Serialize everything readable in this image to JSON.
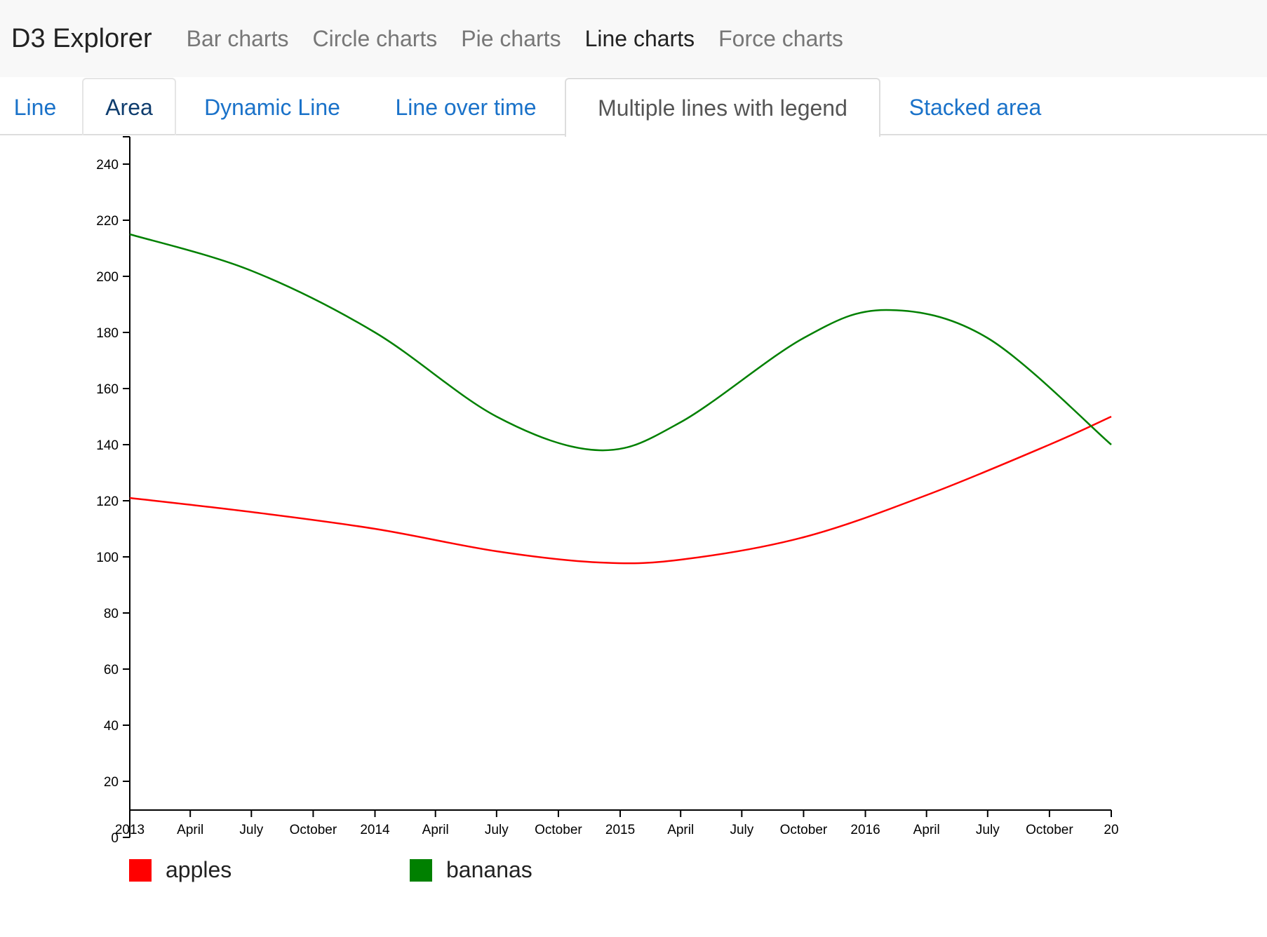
{
  "navbar": {
    "brand": "D3 Explorer",
    "items": [
      {
        "label": "Bar charts",
        "active": false
      },
      {
        "label": "Circle charts",
        "active": false
      },
      {
        "label": "Pie charts",
        "active": false
      },
      {
        "label": "Line charts",
        "active": true
      },
      {
        "label": "Force charts",
        "active": false
      }
    ]
  },
  "tabs": [
    {
      "label": "Line",
      "active": false
    },
    {
      "label": "Area",
      "active": false
    },
    {
      "label": "Dynamic Line",
      "active": false
    },
    {
      "label": "Line over time",
      "active": false
    },
    {
      "label": "Multiple lines with legend",
      "active": true
    },
    {
      "label": "Stacked area",
      "active": false
    }
  ],
  "colors": {
    "apples": "#ff0000",
    "bananas": "#008000",
    "link": "#1a72c9"
  },
  "chart_data": {
    "type": "line",
    "title": "",
    "xlabel": "",
    "ylabel": "",
    "ylim": [
      0,
      250
    ],
    "y_ticks": [
      20,
      40,
      60,
      80,
      100,
      120,
      140,
      160,
      180,
      200,
      220,
      240
    ],
    "y_origin_label": "0",
    "x_ticks": [
      {
        "date": "2013-01-01",
        "label": "2013"
      },
      {
        "date": "2013-04-01",
        "label": "April"
      },
      {
        "date": "2013-07-01",
        "label": "July"
      },
      {
        "date": "2013-10-01",
        "label": "October"
      },
      {
        "date": "2014-01-01",
        "label": "2014"
      },
      {
        "date": "2014-04-01",
        "label": "April"
      },
      {
        "date": "2014-07-01",
        "label": "July"
      },
      {
        "date": "2014-10-01",
        "label": "October"
      },
      {
        "date": "2015-01-01",
        "label": "2015"
      },
      {
        "date": "2015-04-01",
        "label": "April"
      },
      {
        "date": "2015-07-01",
        "label": "July"
      },
      {
        "date": "2015-10-01",
        "label": "October"
      },
      {
        "date": "2016-01-01",
        "label": "2016"
      },
      {
        "date": "2016-04-01",
        "label": "April"
      },
      {
        "date": "2016-07-01",
        "label": "July"
      },
      {
        "date": "2016-10-01",
        "label": "October"
      },
      {
        "date": "2017-01-01",
        "label": "20"
      }
    ],
    "xlim": [
      "2013-01-01",
      "2017-01-01"
    ],
    "grid": false,
    "legend": "bottom-left",
    "series": [
      {
        "name": "apples",
        "color": "#ff0000",
        "points": [
          {
            "x": "2013-01-01",
            "y": 121
          },
          {
            "x": "2013-07-01",
            "y": 116
          },
          {
            "x": "2014-01-01",
            "y": 110
          },
          {
            "x": "2014-07-01",
            "y": 102
          },
          {
            "x": "2014-12-01",
            "y": 98
          },
          {
            "x": "2015-04-01",
            "y": 99
          },
          {
            "x": "2015-10-01",
            "y": 107
          },
          {
            "x": "2016-04-01",
            "y": 122
          },
          {
            "x": "2016-10-01",
            "y": 140
          },
          {
            "x": "2017-01-01",
            "y": 150
          }
        ]
      },
      {
        "name": "bananas",
        "color": "#008000",
        "points": [
          {
            "x": "2013-01-01",
            "y": 215
          },
          {
            "x": "2013-07-01",
            "y": 202
          },
          {
            "x": "2014-01-01",
            "y": 180
          },
          {
            "x": "2014-07-01",
            "y": 150
          },
          {
            "x": "2014-12-01",
            "y": 138
          },
          {
            "x": "2015-04-01",
            "y": 148
          },
          {
            "x": "2015-10-01",
            "y": 178
          },
          {
            "x": "2016-02-01",
            "y": 188
          },
          {
            "x": "2016-07-01",
            "y": 178
          },
          {
            "x": "2017-01-01",
            "y": 140
          }
        ]
      }
    ]
  }
}
